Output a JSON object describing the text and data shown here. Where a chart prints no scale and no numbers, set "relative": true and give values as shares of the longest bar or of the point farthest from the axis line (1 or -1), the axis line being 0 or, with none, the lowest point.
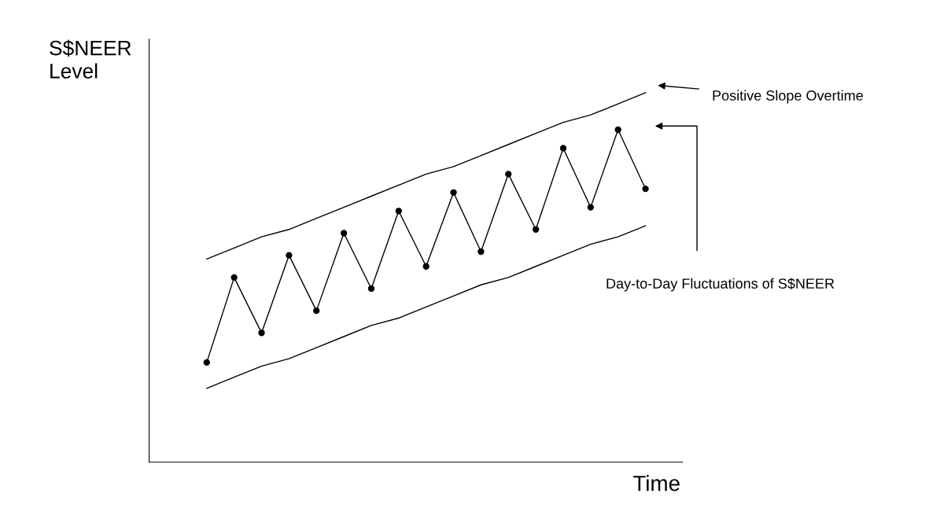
{
  "chart_data": {
    "type": "line",
    "relative": true,
    "xlabel": "Time",
    "ylabel": "S$NEER\nLevel",
    "categories": [
      null,
      null,
      null,
      null,
      null,
      null,
      null,
      null,
      null,
      null,
      null,
      null,
      null,
      null,
      null,
      null,
      null
    ],
    "series": [
      {
        "color": "#000000",
        "marker": "circle",
        "values": [
          0.27,
          0.5,
          0.35,
          0.56,
          0.41,
          0.62,
          0.47,
          0.68,
          0.53,
          0.73,
          0.57,
          0.78,
          0.63,
          0.85,
          0.69,
          0.9,
          0.74
        ]
      },
      {
        "color": "#000000",
        "marker": "none",
        "values": [
          0.55,
          0.58,
          0.61,
          0.63,
          0.66,
          0.69,
          0.72,
          0.75,
          0.78,
          0.8,
          0.83,
          0.86,
          0.89,
          0.92,
          0.94,
          0.97,
          1.0
        ]
      },
      {
        "color": "#000000",
        "marker": "none",
        "values": [
          0.2,
          0.23,
          0.26,
          0.28,
          0.31,
          0.34,
          0.37,
          0.39,
          0.42,
          0.45,
          0.48,
          0.5,
          0.53,
          0.56,
          0.59,
          0.61,
          0.64
        ]
      }
    ],
    "annotations": [
      "Positive Slope Overtime",
      "Day-to-Day Fluctuations of S$NEER"
    ],
    "grid": false,
    "legend": false
  }
}
